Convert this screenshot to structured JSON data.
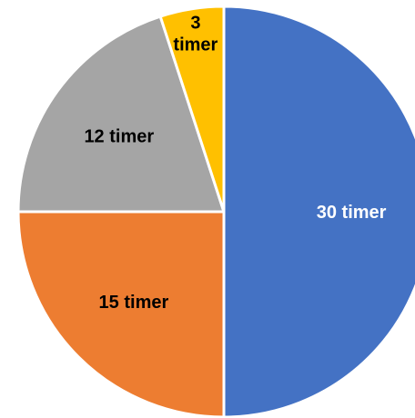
{
  "chart_data": {
    "type": "pie",
    "title": "",
    "slices": [
      {
        "label": "30 timer",
        "value": 30,
        "color": "#4472C4",
        "label_color": "#FFFFFF"
      },
      {
        "label": "15 timer",
        "value": 15,
        "color": "#ED7D31",
        "label_color": "#000000"
      },
      {
        "label": "12 timer",
        "value": 12,
        "color": "#A5A5A5",
        "label_color": "#000000"
      },
      {
        "label": "3 timer",
        "value": 3,
        "color": "#FFC000",
        "label_color": "#000000"
      }
    ],
    "start_angle_deg": 0,
    "direction": "clockwise",
    "legend": "none",
    "data_labels": "inside"
  }
}
